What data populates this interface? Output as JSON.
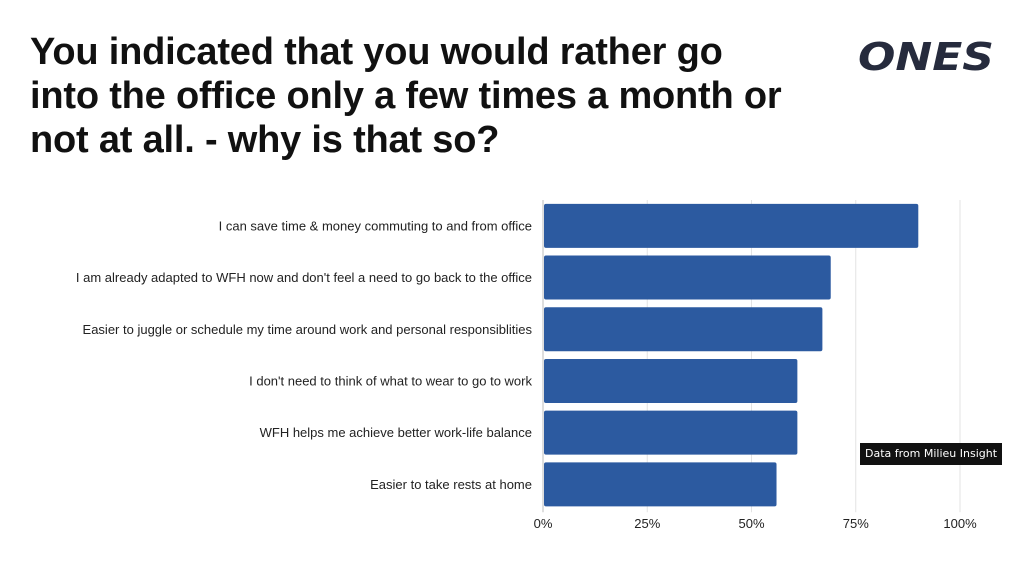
{
  "title": "You indicated that you would rather go into the office only a few times a month or not at all. - why is that so?",
  "logo": {
    "text": "ONES",
    "color": "#262b3d"
  },
  "source_note": "Data from Milieu Insight",
  "colors": {
    "bar": "#2c5aa0",
    "grid": "#e3e3e3",
    "axis": "#bdbdbd"
  },
  "chart_data": {
    "type": "bar",
    "orientation": "horizontal",
    "categories": [
      "I can save time & money commuting to and from office",
      "I am already adapted to WFH now and don't feel a need to go back to the office",
      "Easier to juggle or schedule my time around work and personal responsiblities",
      "I don't need to think of what to wear to go to work",
      "WFH helps me achieve better work-life balance",
      "Easier to take rests at home"
    ],
    "values": [
      90,
      69,
      67,
      61,
      61,
      56
    ],
    "unit": "%",
    "xlim": [
      0,
      100
    ],
    "xticks": [
      "0%",
      "25%",
      "50%",
      "75%",
      "100%"
    ],
    "grid": true
  }
}
